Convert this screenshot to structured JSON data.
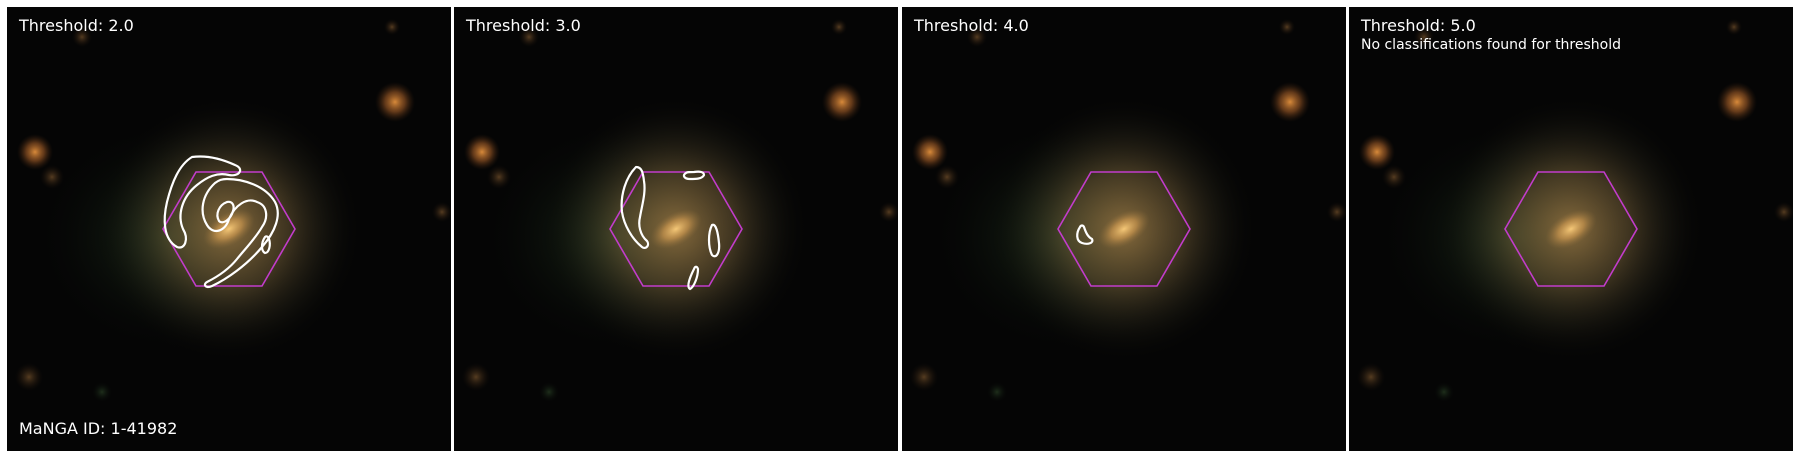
{
  "panels": [
    {
      "threshold_label": "Threshold: 2.0"
    },
    {
      "threshold_label": "Threshold: 3.0"
    },
    {
      "threshold_label": "Threshold: 4.0"
    },
    {
      "threshold_label": "Threshold: 5.0",
      "note": "No classifications found for threshold"
    }
  ],
  "manga_id_label": "MaNGA ID: 1-41982",
  "colors": {
    "hexagon": "#c23ccb",
    "contour": "#ffffff",
    "background": "#050505",
    "galaxy_core": "#e8b060"
  }
}
